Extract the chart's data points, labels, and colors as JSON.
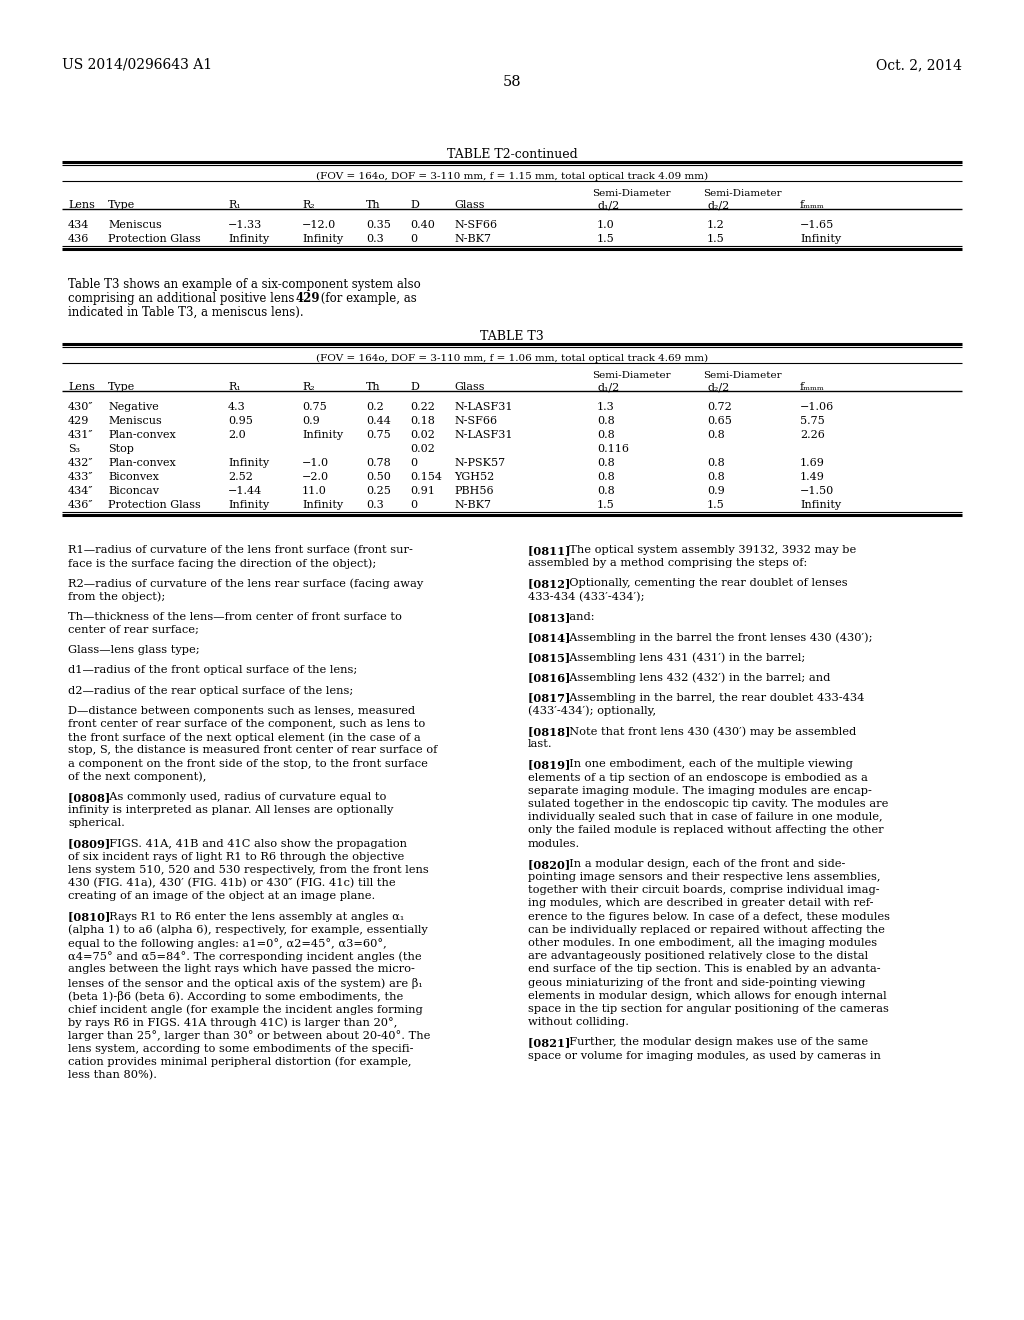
{
  "header_left": "US 2014/0296643 A1",
  "header_right": "Oct. 2, 2014",
  "page_number": "58",
  "background_color": "#ffffff",
  "table_t2_continued_title": "TABLE T2-continued",
  "table_t2_subtitle": "(FOV = 164o, DOF = 3-110 mm, f = 1.15 mm, total optical track 4.09 mm)",
  "table_t2_rows": [
    [
      "434",
      "Meniscus",
      "−1.33",
      "−12.0",
      "0.35",
      "0.40",
      "N-SF66",
      "1.0",
      "1.2",
      "−1.65"
    ],
    [
      "436",
      "Protection Glass",
      "Infinity",
      "Infinity",
      "0.3",
      "0",
      "N-BK7",
      "1.5",
      "1.5",
      "Infinity"
    ]
  ],
  "paragraph_t3_intro_parts": [
    [
      "normal",
      "Table T3 shows an example of a six-component system also"
    ],
    [
      "normal",
      "comprising an additional positive lens "
    ],
    [
      "bold",
      "429"
    ],
    [
      "normal",
      " (for example, as"
    ],
    [
      "normal",
      "indicated in Table T3, a meniscus lens)."
    ]
  ],
  "table_t3_title": "TABLE T3",
  "table_t3_subtitle": "(FOV = 164o, DOF = 3-110 mm, f = 1.06 mm, total optical track 4.69 mm)",
  "table_t3_rows": [
    [
      "430″",
      "Negative",
      "4.3",
      "0.75",
      "0.2",
      "0.22",
      "N-LASF31",
      "1.3",
      "0.72",
      "−1.06"
    ],
    [
      "429",
      "Meniscus",
      "0.95",
      "0.9",
      "0.44",
      "0.18",
      "N-SF66",
      "0.8",
      "0.65",
      "5.75"
    ],
    [
      "431″",
      "Plan-convex",
      "2.0",
      "Infinity",
      "0.75",
      "0.02",
      "N-LASF31",
      "0.8",
      "0.8",
      "2.26"
    ],
    [
      "S₃",
      "Stop",
      "",
      "",
      "",
      "0.02",
      "",
      "0.116",
      "",
      ""
    ],
    [
      "432″",
      "Plan-convex",
      "Infinity",
      "−1.0",
      "0.78",
      "0",
      "N-PSK57",
      "0.8",
      "0.8",
      "1.69"
    ],
    [
      "433″",
      "Biconvex",
      "2.52",
      "−2.0",
      "0.50",
      "0.154",
      "YGH52",
      "0.8",
      "0.8",
      "1.49"
    ],
    [
      "434″",
      "Biconcav",
      "−1.44",
      "11.0",
      "0.25",
      "0.91",
      "PBH56",
      "0.8",
      "0.9",
      "−1.50"
    ],
    [
      "436″",
      "Protection Glass",
      "Infinity",
      "Infinity",
      "0.3",
      "0",
      "N-BK7",
      "1.5",
      "1.5",
      "Infinity"
    ]
  ],
  "left_col_paragraphs": [
    "R1—radius of curvature of the lens front surface (front sur-\nface is the surface facing the direction of the object);",
    "R2—radius of curvature of the lens rear surface (facing away\nfrom the object);",
    "Th—thickness of the lens—from center of front surface to\ncenter of rear surface;",
    "Glass—lens glass type;",
    "d1—radius of the front optical surface of the lens;",
    "d2—radius of the rear optical surface of the lens;",
    "D—distance between components such as lenses, measured\nfront center of rear surface of the component, such as lens to\nthe front surface of the next optical element (in the case of a\nstop, S, the distance is measured front center of rear surface of\na component on the front side of the stop, to the front surface\nof the next component),",
    "[0808]   As commonly used, radius of curvature equal to\ninfinity is interpreted as planar. All lenses are optionally\nspherical.",
    "[0809]   FIGS. 41A, 41B and 41C also show the propagation\nof six incident rays of light R1 to R6 through the objective\nlens system 510, 520 and 530 respectively, from the front lens\n430 (FIG. 41a), 430′ (FIG. 41b) or 430″ (FIG. 41c) till the\ncreating of an image of the object at an image plane.",
    "[0810]   Rays R1 to R6 enter the lens assembly at angles α₁\n(alpha 1) to a6 (alpha 6), respectively, for example, essentially\nequal to the following angles: a1=0°, α2=45°, α3=60°,\nα4=75° and α5=84°. The corresponding incident angles (the\nangles between the light rays which have passed the micro-\nlenses of the sensor and the optical axis of the system) are β₁\n(beta 1)-β6 (beta 6). According to some embodiments, the\nchief incident angle (for example the incident angles forming\nby rays R6 in FIGS. 41A through 41C) is larger than 20°,\nlarger than 25°, larger than 30° or between about 20-40°. The\nlens system, according to some embodiments of the specifi-\ncation provides minimal peripheral distortion (for example,\nless than 80%)."
  ],
  "right_col_paragraphs": [
    "[0811]   The optical system assembly 39132, 3932 may be\nassembled by a method comprising the steps of:",
    "[0812]   Optionally, cementing the rear doublet of lenses\n433-434 (433′-434′);",
    "[0813]   and:",
    "[0814]   Assembling in the barrel the front lenses 430 (430′);",
    "[0815]   Assembling lens 431 (431′) in the barrel;",
    "[0816]   Assembling lens 432 (432′) in the barrel; and",
    "[0817]   Assembling in the barrel, the rear doublet 433-434\n(433′-434′); optionally,",
    "[0818]   Note that front lens 430 (430′) may be assembled\nlast.",
    "[0819]   In one embodiment, each of the multiple viewing\nelements of a tip section of an endoscope is embodied as a\nseparate imaging module. The imaging modules are encap-\nsulated together in the endoscopic tip cavity. The modules are\nindividually sealed such that in case of failure in one module,\nonly the failed module is replaced without affecting the other\nmodules.",
    "[0820]   In a modular design, each of the front and side-\npointing image sensors and their respective lens assemblies,\ntogether with their circuit boards, comprise individual imag-\ning modules, which are described in greater detail with ref-\nerence to the figures below. In case of a defect, these modules\ncan be individually replaced or repaired without affecting the\nother modules. In one embodiment, all the imaging modules\nare advantageously positioned relatively close to the distal\nend surface of the tip section. This is enabled by an advanta-\ngeous miniaturizing of the front and side-pointing viewing\nelements in modular design, which allows for enough internal\nspace in the tip section for angular positioning of the cameras\nwithout colliding.",
    "[0821]   Further, the modular design makes use of the same\nspace or volume for imaging modules, as used by cameras in"
  ]
}
